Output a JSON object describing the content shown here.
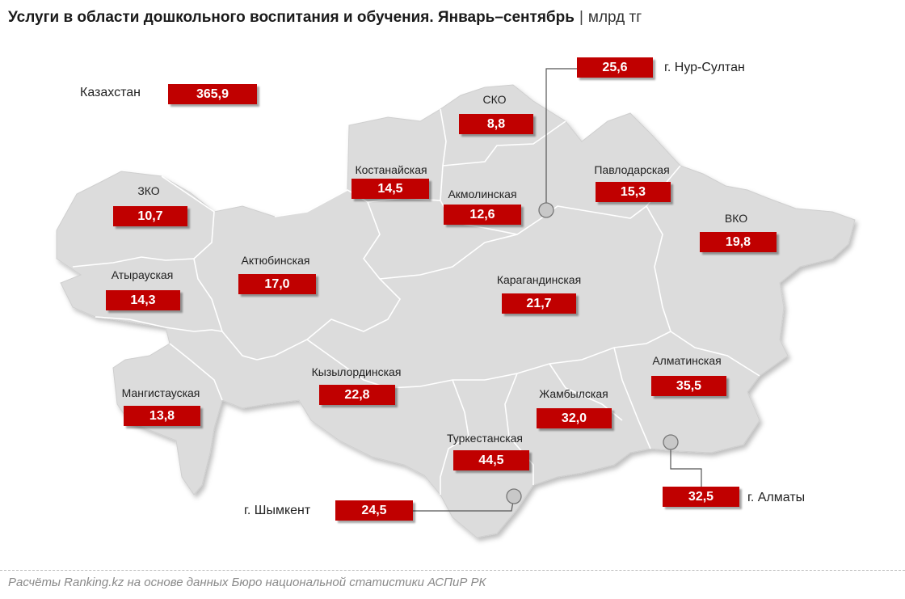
{
  "header": {
    "title": "Услуги в области дошкольного воспитания и обучения. Январь–сентябрь",
    "separator": "|",
    "unit": "млрд тг"
  },
  "total": {
    "label": "Казахстан",
    "value": "365,9"
  },
  "regions": [
    {
      "name": "ЗКО",
      "value": "10,7"
    },
    {
      "name": "Атырауская",
      "value": "14,3"
    },
    {
      "name": "Актюбинская",
      "value": "17,0"
    },
    {
      "name": "Мангистауская",
      "value": "13,8"
    },
    {
      "name": "Костанайская",
      "value": "14,5"
    },
    {
      "name": "СКО",
      "value": "8,8"
    },
    {
      "name": "Акмолинская",
      "value": "12,6"
    },
    {
      "name": "Павлодарская",
      "value": "15,3"
    },
    {
      "name": "ВКО",
      "value": "19,8"
    },
    {
      "name": "Карагандинская",
      "value": "21,7"
    },
    {
      "name": "Кызылординская",
      "value": "22,8"
    },
    {
      "name": "Алматинская",
      "value": "35,5"
    },
    {
      "name": "Жамбылская",
      "value": "32,0"
    },
    {
      "name": "Туркестанская",
      "value": "44,5"
    }
  ],
  "cities": [
    {
      "name": "г. Нур-Султан",
      "value": "25,6"
    },
    {
      "name": "г. Шымкент",
      "value": "24,5"
    },
    {
      "name": "г. Алматы",
      "value": "32,5"
    }
  ],
  "source": "Расчёты Ranking.kz на основе данных Бюро национальной статистики АСПиР РК",
  "colors": {
    "value_box": "#c00000",
    "map_fill": "#dcdcdc",
    "region_border": "#ffffff",
    "city_marker": "#c8c8c8"
  }
}
